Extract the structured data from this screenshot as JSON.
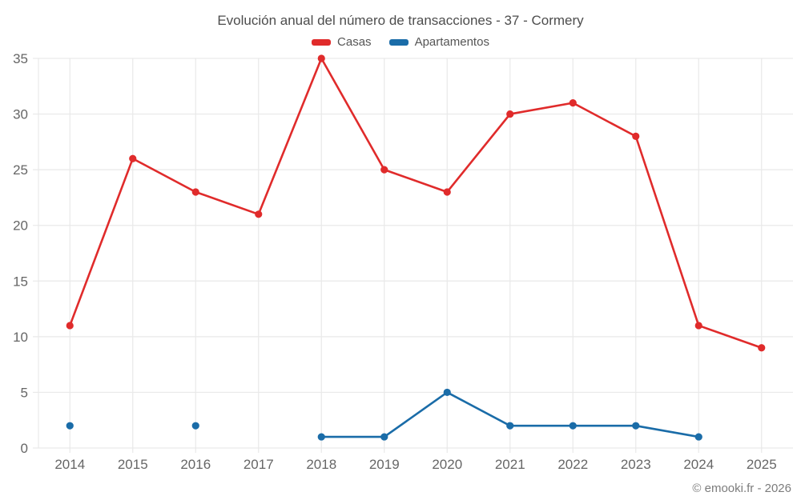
{
  "title": "Evolución anual del número de transacciones - 37 - Cormery",
  "footer": "© emooki.fr - 2026",
  "colors": {
    "grid": "#e9e9e9",
    "tick_text": "#666666",
    "title_text": "#4d4d4d",
    "casas": "#e02b2b",
    "apartamentos": "#1a6ca8"
  },
  "chart_data": {
    "type": "line",
    "title": "Evolución anual del número de transacciones - 37 - Cormery",
    "categories": [
      "2014",
      "2015",
      "2016",
      "2017",
      "2018",
      "2019",
      "2020",
      "2021",
      "2022",
      "2023",
      "2024",
      "2025"
    ],
    "series": [
      {
        "name": "Casas",
        "color": "#e02b2b",
        "values": [
          11,
          26,
          23,
          21,
          35,
          25,
          23,
          30,
          31,
          28,
          11,
          9
        ]
      },
      {
        "name": "Apartamentos",
        "color": "#1a6ca8",
        "values": [
          2,
          null,
          2,
          null,
          1,
          1,
          5,
          2,
          2,
          2,
          1,
          null
        ]
      }
    ],
    "xlabel": "",
    "ylabel": "",
    "ylim": [
      0,
      35
    ],
    "yticks": [
      0,
      5,
      10,
      15,
      20,
      25,
      30,
      35
    ],
    "grid": true,
    "legend_position": "top"
  }
}
